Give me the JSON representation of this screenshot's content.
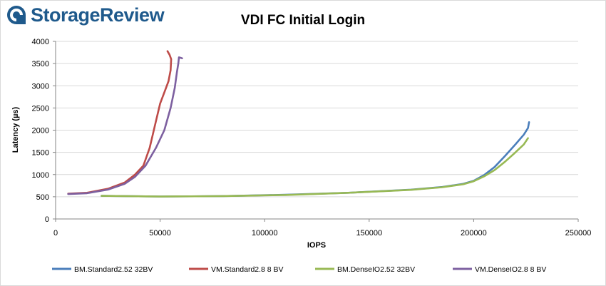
{
  "brand": {
    "name": "StorageReview",
    "color": "#1f5a8c"
  },
  "chart_data": {
    "type": "line",
    "title": "VDI FC Initial Login",
    "xlabel": "IOPS",
    "ylabel": "Latency (µs)",
    "xlim": [
      0,
      250000
    ],
    "ylim": [
      0,
      4000
    ],
    "xticks": [
      0,
      50000,
      100000,
      150000,
      200000,
      250000
    ],
    "yticks": [
      0,
      500,
      1000,
      1500,
      2000,
      2500,
      3000,
      3500,
      4000
    ],
    "grid": "horizontal",
    "legend_position": "bottom",
    "series": [
      {
        "name": "BM.Standard2.52 32BV",
        "color": "#4a7ebb",
        "points": [
          [
            22000,
            520
          ],
          [
            50000,
            505
          ],
          [
            80000,
            515
          ],
          [
            110000,
            545
          ],
          [
            140000,
            590
          ],
          [
            170000,
            660
          ],
          [
            185000,
            720
          ],
          [
            195000,
            790
          ],
          [
            200000,
            860
          ],
          [
            205000,
            990
          ],
          [
            210000,
            1170
          ],
          [
            215000,
            1420
          ],
          [
            220000,
            1680
          ],
          [
            224000,
            1900
          ],
          [
            226000,
            2050
          ],
          [
            226500,
            2180
          ]
        ]
      },
      {
        "name": "VM.Standard2.8 8 BV",
        "color": "#be4b48",
        "points": [
          [
            6000,
            570
          ],
          [
            15000,
            590
          ],
          [
            25000,
            680
          ],
          [
            33000,
            820
          ],
          [
            38000,
            1000
          ],
          [
            42000,
            1200
          ],
          [
            45000,
            1600
          ],
          [
            48000,
            2200
          ],
          [
            50000,
            2600
          ],
          [
            52000,
            2850
          ],
          [
            54000,
            3100
          ],
          [
            55000,
            3350
          ],
          [
            55300,
            3600
          ],
          [
            54500,
            3700
          ],
          [
            53500,
            3780
          ]
        ]
      },
      {
        "name": "BM.DenseIO2.52 32BV",
        "color": "#98b954",
        "points": [
          [
            22000,
            520
          ],
          [
            50000,
            505
          ],
          [
            80000,
            515
          ],
          [
            110000,
            540
          ],
          [
            140000,
            590
          ],
          [
            170000,
            655
          ],
          [
            185000,
            715
          ],
          [
            195000,
            780
          ],
          [
            200000,
            850
          ],
          [
            205000,
            960
          ],
          [
            210000,
            1100
          ],
          [
            215000,
            1290
          ],
          [
            220000,
            1500
          ],
          [
            224000,
            1680
          ],
          [
            226000,
            1820
          ]
        ]
      },
      {
        "name": "VM.DenseIO2.8 8 BV",
        "color": "#7d60a0",
        "points": [
          [
            6000,
            560
          ],
          [
            15000,
            580
          ],
          [
            25000,
            660
          ],
          [
            33000,
            790
          ],
          [
            38000,
            950
          ],
          [
            43000,
            1200
          ],
          [
            48000,
            1600
          ],
          [
            52000,
            2000
          ],
          [
            55000,
            2500
          ],
          [
            57000,
            2950
          ],
          [
            58000,
            3300
          ],
          [
            58700,
            3500
          ],
          [
            59000,
            3640
          ],
          [
            60500,
            3620
          ]
        ]
      }
    ]
  }
}
